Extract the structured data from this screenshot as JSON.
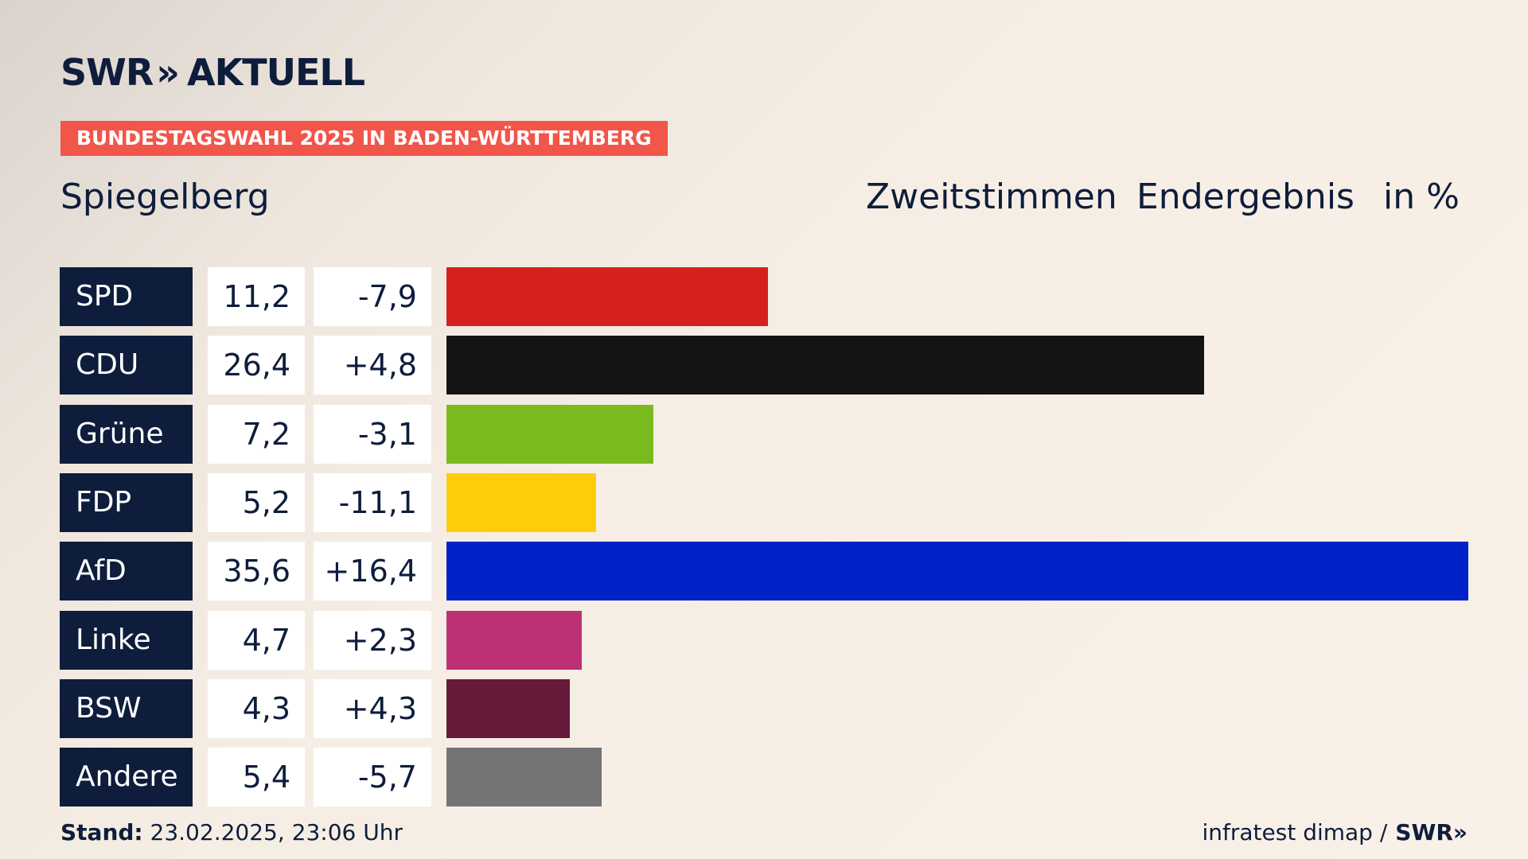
{
  "header": {
    "brand_left": "SWR",
    "brand_chevrons": "»",
    "brand_right": "AKTUELL",
    "banner": "BUNDESTAGSWAHL 2025 IN BADEN-WÜRTTEMBERG",
    "region": "Spiegelberg",
    "vote_type": "Zweitstimmen",
    "result_type": "Endergebnis",
    "unit": "in %"
  },
  "chart_data": {
    "type": "bar",
    "orientation": "horizontal",
    "categories": [
      "SPD",
      "CDU",
      "Grüne",
      "FDP",
      "AfD",
      "Linke",
      "BSW",
      "Andere"
    ],
    "values": [
      11.2,
      26.4,
      7.2,
      5.2,
      35.6,
      4.7,
      4.3,
      5.4
    ],
    "value_labels": [
      "11,2",
      "26,4",
      "7,2",
      "5,2",
      "35,6",
      "4,7",
      "4,3",
      "5,4"
    ],
    "change_labels": [
      "-7,9",
      "+4,8",
      "-3,1",
      "-11,1",
      "+16,4",
      "+2,3",
      "+4,3",
      "-5,7"
    ],
    "colors": [
      "#d62020",
      "#141414",
      "#7aba1e",
      "#ffcc0a",
      "#0022c8",
      "#bc3175",
      "#67193a",
      "#737476"
    ],
    "xlim": [
      0,
      35.6
    ]
  },
  "footer": {
    "stand_label": "Stand:",
    "stand_value": "23.02.2025, 23:06 Uhr",
    "source": "infratest dimap /",
    "source_brand": "SWR»"
  }
}
